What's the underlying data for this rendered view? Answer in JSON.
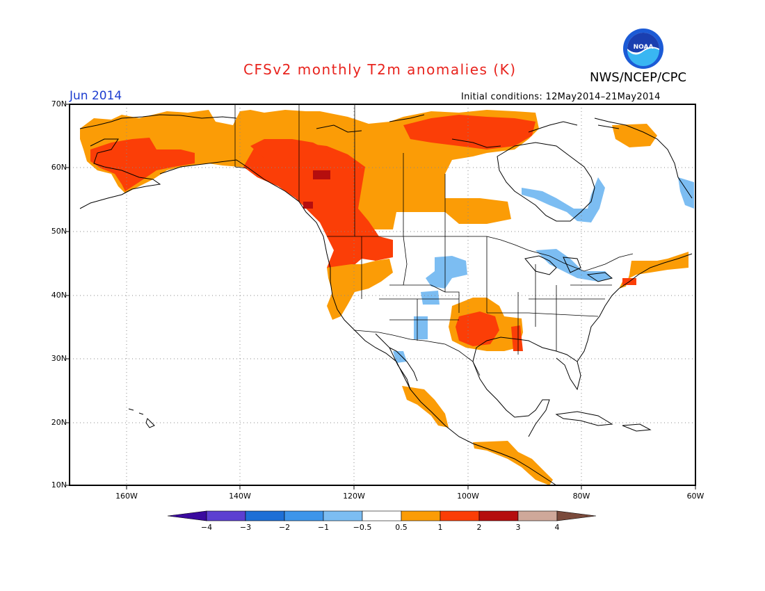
{
  "header": {
    "title": "CFSv2 monthly T2m anomalies (K)",
    "agency": "NWS/NCEP/CPC",
    "logo_text": "NOAA",
    "month": "Jun 2014",
    "initial_conditions": "Initial conditions: 12May2014–21May2014"
  },
  "axes": {
    "lat_labels": [
      "70N",
      "60N",
      "50N",
      "40N",
      "30N",
      "20N",
      "10N"
    ],
    "lon_labels": [
      "160W",
      "140W",
      "120W",
      "100W",
      "80W",
      "60W"
    ]
  },
  "colorbar": {
    "labels": [
      "−4",
      "−3",
      "−2",
      "−1",
      "−0.5",
      "0.5",
      "1",
      "2",
      "3",
      "4"
    ],
    "colors": [
      "#3a0a9e",
      "#5c3fd1",
      "#1e6fd6",
      "#3e95ea",
      "#7cbdf2",
      "#ffffff",
      "#fb9c06",
      "#fb3e07",
      "#b50e0e",
      "#cfa89a",
      "#7a4a3c"
    ]
  },
  "colors": {
    "title": "#e8231d",
    "month": "#1c3ccf",
    "frame": "#000000"
  }
}
